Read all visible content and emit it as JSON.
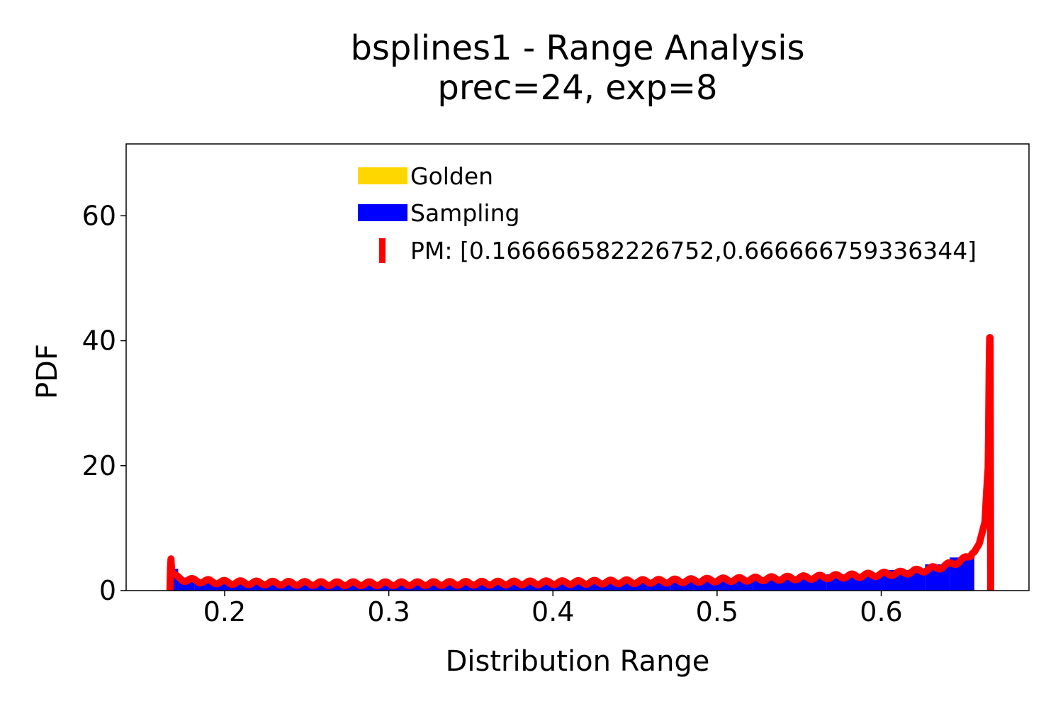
{
  "chart_data": {
    "type": "area",
    "title": "bsplines1 - Range Analysis",
    "subtitle": "prec=24, exp=8",
    "xlabel": "Distribution Range",
    "ylabel": "PDF",
    "xlim": [
      0.14,
      0.69
    ],
    "ylim": [
      0,
      71.5
    ],
    "x_ticks": [
      "0.2",
      "0.3",
      "0.4",
      "0.5",
      "0.6"
    ],
    "y_ticks": [
      "0",
      "20",
      "40",
      "60"
    ],
    "grid": false,
    "legend_position": "top-center",
    "legend": [
      {
        "label": "Golden",
        "color": "#ffd700",
        "kind": "bar"
      },
      {
        "label": "Sampling",
        "color": "#0000ff",
        "kind": "bar"
      },
      {
        "label": "PM: [0.166666582226752,0.666666759336344]",
        "color": "#ff0000",
        "kind": "line"
      }
    ],
    "sampling_histogram": {
      "bin_edges": [
        0.1667,
        0.1717,
        0.1817,
        0.2017,
        0.2317,
        0.2717,
        0.3217,
        0.3717,
        0.4217,
        0.4717,
        0.5217,
        0.5667,
        0.6017,
        0.6267,
        0.6417,
        0.6567
      ],
      "values": [
        3.5,
        2.1,
        1.5,
        1.2,
        1.0,
        1.0,
        1.1,
        1.2,
        1.4,
        1.6,
        2.0,
        2.6,
        3.3,
        4.2,
        5.3
      ]
    },
    "pm": {
      "range": [
        0.166666582226752,
        0.666666759336344
      ],
      "x": [
        0.1667,
        0.1672,
        0.1677,
        0.1687,
        0.1717,
        0.1767,
        0.1867,
        0.2017,
        0.2267,
        0.2667,
        0.3167,
        0.3667,
        0.4167,
        0.4667,
        0.5167,
        0.5567,
        0.5867,
        0.6117,
        0.6267,
        0.6367,
        0.6467,
        0.6527,
        0.6567,
        0.6597,
        0.6617,
        0.6632,
        0.6642,
        0.6652,
        0.6659,
        0.6664,
        0.66666
      ],
      "y": [
        0,
        5.7,
        3.2,
        2.4,
        2.0,
        1.7,
        1.5,
        1.3,
        1.2,
        1.1,
        1.1,
        1.2,
        1.3,
        1.5,
        1.8,
        2.1,
        2.4,
        2.8,
        3.3,
        3.8,
        4.6,
        5.3,
        6.2,
        7.5,
        9.5,
        11.0,
        16.0,
        20.0,
        40.5,
        40.5,
        0
      ],
      "oscillation_amplitude": 0.3
    },
    "golden_values": []
  }
}
